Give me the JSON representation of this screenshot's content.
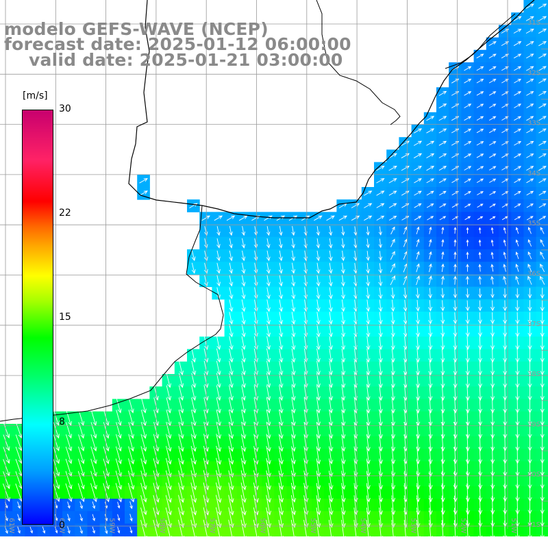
{
  "title": {
    "line1": "modelo GEFS-WAVE (NCEP)",
    "line2": "forecast date: 2025-01-12 06:00:00",
    "line3": "valid date: 2025-01-21 03:00:00"
  },
  "colorbar": {
    "unit": "[m/s]",
    "ticks": [
      "30",
      "22",
      "15",
      "8",
      "0"
    ]
  },
  "map": {
    "lat_labels": [
      "31S",
      "32S",
      "33S",
      "34S",
      "35S",
      "36S",
      "37S",
      "38S",
      "39S",
      "40S",
      "41S"
    ],
    "lon_labels": [
      "61W",
      "60W",
      "59W",
      "58W",
      "57W",
      "56W",
      "55W",
      "54W",
      "53W",
      "52W",
      "51W",
      "50W"
    ]
  },
  "colors": {
    "land": "#ffffff",
    "coastline": "#000000",
    "grid": "#9a9a9a",
    "vectors": "#ffffff"
  }
}
